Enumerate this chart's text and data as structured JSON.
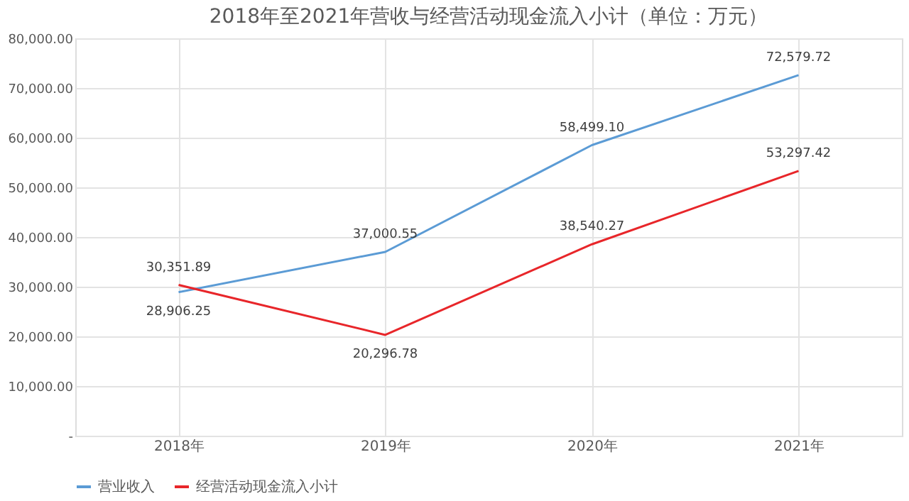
{
  "chart_data": {
    "type": "line",
    "title": "2018年至2021年营收与经营活动现金流入小计（单位：万元）",
    "categories": [
      "2018年",
      "2019年",
      "2020年",
      "2021年"
    ],
    "series": [
      {
        "name": "营业收入",
        "color": "#5b9bd5",
        "values": [
          28906.25,
          37000.55,
          58499.1,
          72579.72
        ],
        "value_labels": [
          "28,906.25",
          "37,000.55",
          "58,499.10",
          "72,579.72"
        ]
      },
      {
        "name": "经营活动现金流入小计",
        "color": "#e8262a",
        "values": [
          30351.89,
          20296.78,
          38540.27,
          53297.42
        ],
        "value_labels": [
          "30,351.89",
          "20,296.78",
          "38,540.27",
          "53,297.42"
        ]
      }
    ],
    "ylim": [
      0,
      80000
    ],
    "yticks": [
      {
        "value": 0,
        "label": "-"
      },
      {
        "value": 10000,
        "label": "10,000.00"
      },
      {
        "value": 20000,
        "label": "20,000.00"
      },
      {
        "value": 30000,
        "label": "30,000.00"
      },
      {
        "value": 40000,
        "label": "40,000.00"
      },
      {
        "value": 50000,
        "label": "50,000.00"
      },
      {
        "value": 60000,
        "label": "60,000.00"
      },
      {
        "value": 70000,
        "label": "70,000.00"
      },
      {
        "value": 80000,
        "label": "80,000.00"
      }
    ],
    "grid": true,
    "legend": "bottom",
    "marker": "none",
    "line_style": "solid"
  }
}
